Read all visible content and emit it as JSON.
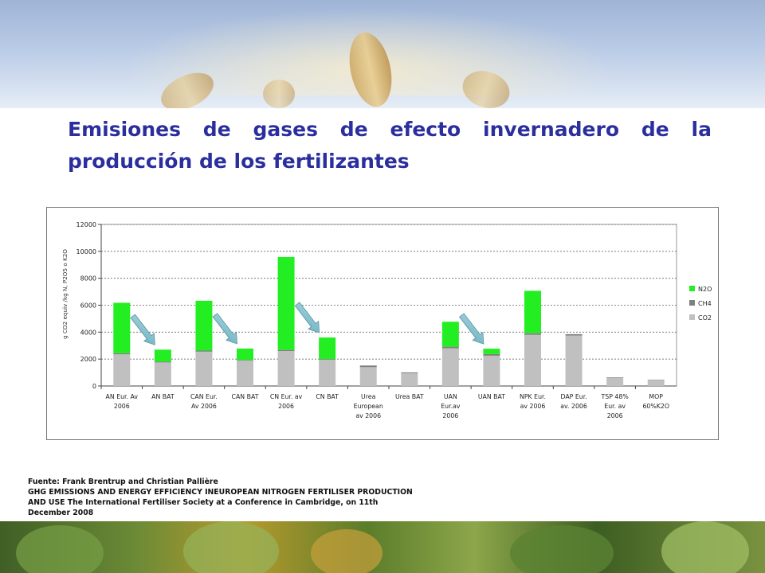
{
  "title": {
    "line1": [
      "Emisiones",
      "de",
      "gases",
      "de",
      "efecto",
      "invernadero",
      "de",
      "la"
    ],
    "line2": "producción de los fertilizantes"
  },
  "chart_data": {
    "type": "bar",
    "stacked": true,
    "categories": [
      [
        "AN Eur. Av",
        "2006"
      ],
      [
        "AN BAT"
      ],
      [
        "CAN Eur.",
        "Av 2006"
      ],
      [
        "CAN BAT"
      ],
      [
        "CN Eur. av",
        "2006"
      ],
      [
        "CN  BAT"
      ],
      [
        "Urea",
        "European",
        "av 2006"
      ],
      [
        "Urea BAT"
      ],
      [
        "UAN",
        "Eur.av",
        "2006"
      ],
      [
        "UAN BAT"
      ],
      [
        "NPK Eur.",
        "av 2006"
      ],
      [
        "DAP Eur.",
        "av. 2006"
      ],
      [
        "TSP 48%",
        "Eur. av",
        "2006"
      ],
      [
        "MOP",
        "60%K2O"
      ]
    ],
    "series": [
      {
        "name": "CO2",
        "color": "#c0c0c0",
        "values": [
          2350,
          1750,
          2550,
          1880,
          2600,
          1950,
          1400,
          950,
          2800,
          2250,
          3800,
          3750,
          620,
          450
        ]
      },
      {
        "name": "CH4",
        "color": "#808080",
        "values": [
          80,
          50,
          80,
          50,
          80,
          50,
          120,
          60,
          120,
          120,
          120,
          100,
          30,
          20
        ]
      },
      {
        "name": "N2O",
        "color": "#22ee22",
        "values": [
          3750,
          900,
          3700,
          850,
          6900,
          1600,
          0,
          0,
          1850,
          400,
          3150,
          0,
          0,
          0
        ]
      }
    ],
    "legend": [
      "N2O",
      "CH4",
      "CO2"
    ],
    "legend_position": "right",
    "ylabel": "g CO2 equiv /kg N, P2O5 o K2O",
    "ylim": [
      0,
      12000
    ],
    "yticks": [
      0,
      2000,
      4000,
      6000,
      8000,
      10000,
      12000
    ],
    "grid": "horizontal dashed",
    "arrows": [
      {
        "from_category": 0,
        "to_category": 1
      },
      {
        "from_category": 2,
        "to_category": 3
      },
      {
        "from_category": 4,
        "to_category": 5
      },
      {
        "from_category": 8,
        "to_category": 9
      }
    ]
  },
  "source": [
    "Fuente: Frank Brentrup  and  Christian Pallière",
    "GHG EMISSIONS AND ENERGY EFFICIENCY INEUROPEAN NITROGEN FERTILISER PRODUCTION",
    "AND USE The International  Fertiliser Society at a Conference  in Cambridge,  on 11th",
    "December 2008"
  ]
}
